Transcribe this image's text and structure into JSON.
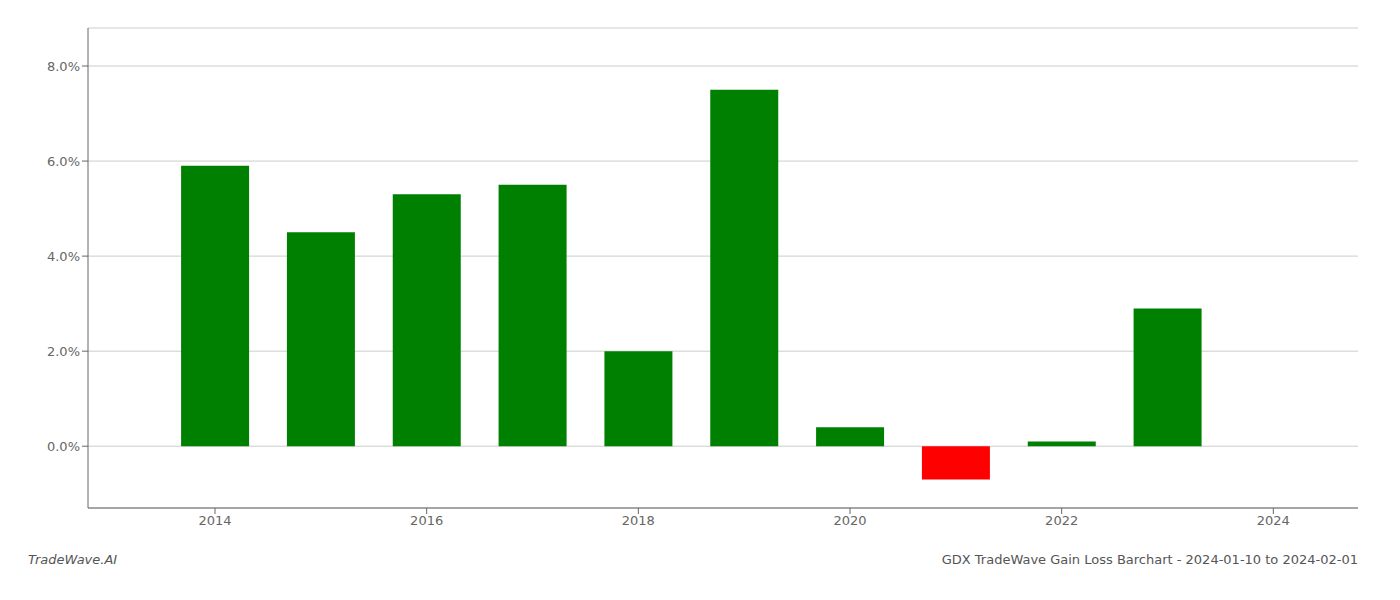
{
  "chart_data": {
    "type": "bar",
    "title": "GDX TradeWave Gain Loss Barchart - 2024-01-10 to 2024-02-01",
    "annotations": [
      "TradeWave.AI"
    ],
    "x": [
      2014,
      2015,
      2016,
      2017,
      2018,
      2019,
      2020,
      2021,
      2022,
      2023
    ],
    "values": [
      0.059,
      0.045,
      0.053,
      0.055,
      0.02,
      0.075,
      0.004,
      -0.007,
      0.001,
      0.029
    ],
    "colors": [
      "#008000",
      "#008000",
      "#008000",
      "#008000",
      "#008000",
      "#008000",
      "#008000",
      "#ff0000",
      "#008000",
      "#008000"
    ],
    "xlim": [
      2012.8,
      2024.8
    ],
    "xticks": [
      2014,
      2016,
      2018,
      2020,
      2022,
      2024
    ],
    "ylim": [
      -0.013,
      0.088
    ],
    "yticks": [
      {
        "value": 0.0,
        "label": "0.0%"
      },
      {
        "value": 0.02,
        "label": "2.0%"
      },
      {
        "value": 0.04,
        "label": "4.0%"
      },
      {
        "value": 0.06,
        "label": "6.0%"
      },
      {
        "value": 0.08,
        "label": "8.0%"
      }
    ],
    "grid": true
  }
}
